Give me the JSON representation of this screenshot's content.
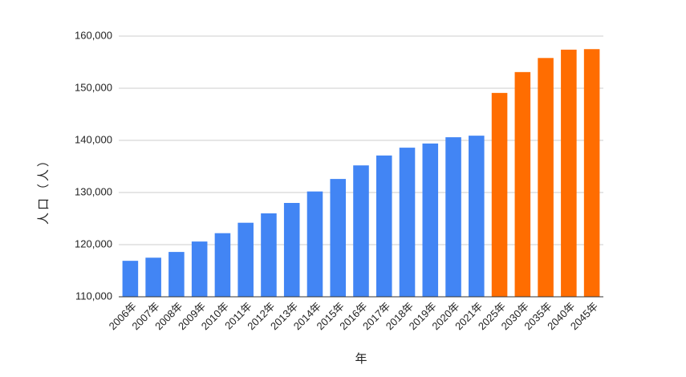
{
  "chart_data": {
    "type": "bar",
    "x_label": "年",
    "y_label": "人口（人）",
    "categories": [
      "2006年",
      "2007年",
      "2008年",
      "2009年",
      "2010年",
      "2011年",
      "2012年",
      "2013年",
      "2014年",
      "2015年",
      "2016年",
      "2017年",
      "2018年",
      "2019年",
      "2020年",
      "2021年",
      "2025年",
      "2030年",
      "2035年",
      "2040年",
      "2045年"
    ],
    "values": [
      116900,
      117500,
      118600,
      120600,
      122200,
      124200,
      126000,
      128000,
      130200,
      132600,
      135200,
      137100,
      138600,
      139400,
      140600,
      140900,
      149100,
      153100,
      155800,
      157400,
      157500
    ],
    "colors": [
      "#4285f4",
      "#4285f4",
      "#4285f4",
      "#4285f4",
      "#4285f4",
      "#4285f4",
      "#4285f4",
      "#4285f4",
      "#4285f4",
      "#4285f4",
      "#4285f4",
      "#4285f4",
      "#4285f4",
      "#4285f4",
      "#4285f4",
      "#4285f4",
      "#ff6d01",
      "#ff6d01",
      "#ff6d01",
      "#ff6d01",
      "#ff6d01"
    ],
    "ylim": [
      110000,
      160000
    ],
    "yticks": [
      {
        "value": 110000,
        "label": "110,000"
      },
      {
        "value": 120000,
        "label": "120,000"
      },
      {
        "value": 130000,
        "label": "130,000"
      },
      {
        "value": 140000,
        "label": "140,000"
      },
      {
        "value": 150000,
        "label": "150,000"
      },
      {
        "value": 160000,
        "label": "160,000"
      }
    ],
    "grid": true
  }
}
